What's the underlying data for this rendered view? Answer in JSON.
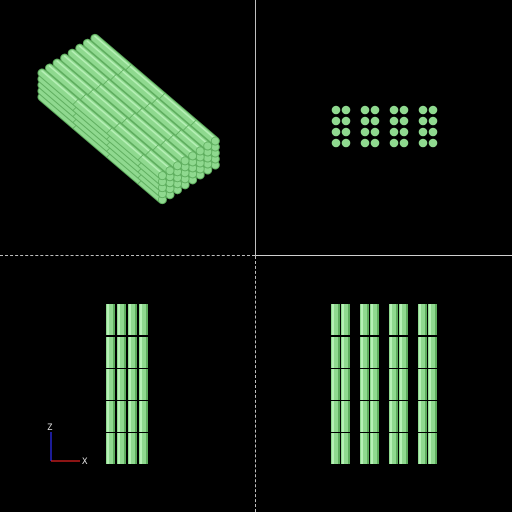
{
  "viewports": [
    {
      "id": "iso",
      "name": "isometric-view"
    },
    {
      "id": "top",
      "name": "top-view"
    },
    {
      "id": "front",
      "name": "front-view"
    },
    {
      "id": "side",
      "name": "side-view"
    }
  ],
  "model": {
    "color_fill": "#8fd98f",
    "color_light": "#b6f0b6",
    "color_shade": "#5fae5f",
    "rows": 4,
    "per_row": 4,
    "layers": 5
  },
  "axis_triad": {
    "z_label": "Z",
    "x_label": "X",
    "z_color": "#3030ff",
    "x_color": "#e02020"
  }
}
